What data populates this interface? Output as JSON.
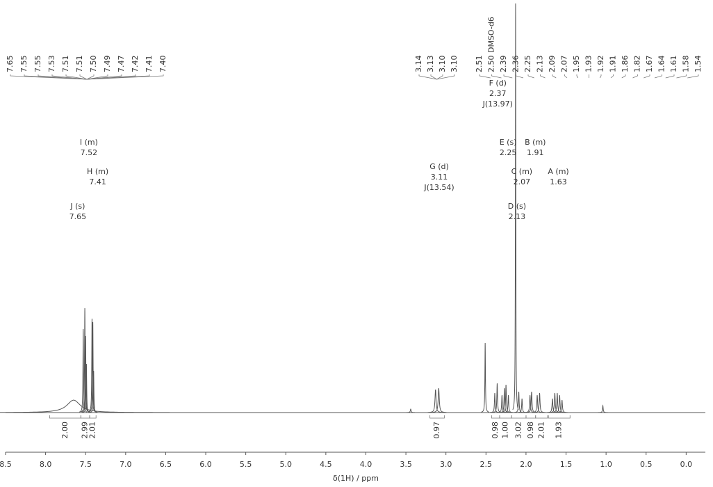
{
  "chart_data": {
    "type": "spectrum",
    "xlabel": "δ(1H) / ppm",
    "xlim": [
      8.5,
      -0.24
    ],
    "ylim": [
      0,
      590
    ],
    "xticks": [
      {
        "value": 8.5,
        "label": "8.5"
      },
      {
        "value": 8.0,
        "label": "8.0"
      },
      {
        "value": 7.5,
        "label": "7.5"
      },
      {
        "value": 7.0,
        "label": "7.0"
      },
      {
        "value": 6.5,
        "label": "6.5"
      },
      {
        "value": 6.0,
        "label": "6.0"
      },
      {
        "value": 5.5,
        "label": "5.5"
      },
      {
        "value": 5.0,
        "label": "5.0"
      },
      {
        "value": 4.5,
        "label": "4.5"
      },
      {
        "value": 4.0,
        "label": "4.0"
      },
      {
        "value": 3.5,
        "label": "3.5"
      },
      {
        "value": 3.0,
        "label": "3.0"
      },
      {
        "value": 2.5,
        "label": "2.5"
      },
      {
        "value": 2.0,
        "label": "2.0"
      },
      {
        "value": 1.5,
        "label": "1.5"
      },
      {
        "value": 1.0,
        "label": "1.0"
      },
      {
        "value": 0.5,
        "label": "0.5"
      },
      {
        "value": 0.0,
        "label": "0.0"
      }
    ],
    "color": "#555555",
    "peaks": [
      {
        "ppm": 7.65,
        "height": 18,
        "width": 0.1
      },
      {
        "ppm": 7.53,
        "height": 120,
        "width": 0.004
      },
      {
        "ppm": 7.51,
        "height": 150,
        "width": 0.004
      },
      {
        "ppm": 7.5,
        "height": 110,
        "width": 0.004
      },
      {
        "ppm": 7.49,
        "height": 70,
        "width": 0.004
      },
      {
        "ppm": 7.42,
        "height": 135,
        "width": 0.004
      },
      {
        "ppm": 7.41,
        "height": 130,
        "width": 0.004
      },
      {
        "ppm": 7.4,
        "height": 60,
        "width": 0.004
      },
      {
        "ppm": 3.44,
        "height": 5,
        "width": 0.006
      },
      {
        "ppm": 3.13,
        "height": 33,
        "width": 0.008
      },
      {
        "ppm": 3.09,
        "height": 35,
        "width": 0.008
      },
      {
        "ppm": 2.51,
        "height": 100,
        "width": 0.004
      },
      {
        "ppm": 2.39,
        "height": 28,
        "width": 0.005
      },
      {
        "ppm": 2.36,
        "height": 42,
        "width": 0.005
      },
      {
        "ppm": 2.3,
        "height": 25,
        "width": 0.005
      },
      {
        "ppm": 2.27,
        "height": 35,
        "width": 0.005
      },
      {
        "ppm": 2.25,
        "height": 40,
        "width": 0.005
      },
      {
        "ppm": 2.22,
        "height": 25,
        "width": 0.005
      },
      {
        "ppm": 2.13,
        "height": 588,
        "width": 0.003
      },
      {
        "ppm": 2.09,
        "height": 30,
        "width": 0.005
      },
      {
        "ppm": 2.05,
        "height": 20,
        "width": 0.005
      },
      {
        "ppm": 1.95,
        "height": 25,
        "width": 0.006
      },
      {
        "ppm": 1.93,
        "height": 30,
        "width": 0.006
      },
      {
        "ppm": 1.86,
        "height": 25,
        "width": 0.006
      },
      {
        "ppm": 1.83,
        "height": 28,
        "width": 0.006
      },
      {
        "ppm": 1.67,
        "height": 20,
        "width": 0.006
      },
      {
        "ppm": 1.64,
        "height": 28,
        "width": 0.006
      },
      {
        "ppm": 1.61,
        "height": 28,
        "width": 0.006
      },
      {
        "ppm": 1.58,
        "height": 25,
        "width": 0.006
      },
      {
        "ppm": 1.55,
        "height": 18,
        "width": 0.006
      },
      {
        "ppm": 1.04,
        "height": 10,
        "width": 0.005
      }
    ],
    "peak_labels": [
      [
        "7.65",
        "7.55",
        "7.55",
        "7.53",
        "7.51",
        "7.51",
        "7.50",
        "7.49",
        "7.47",
        "7.42",
        "7.41",
        "7.40"
      ],
      [
        "3.14",
        "3.13",
        "3.10",
        "3.10"
      ],
      [
        "2.51",
        "2.50 DMSO-d6",
        "2.39",
        "2.36",
        "2.25",
        "2.13",
        "2.09",
        "2.07",
        "1.95",
        "1.93",
        "1.92",
        "1.91",
        "1.86",
        "1.82",
        "1.67",
        "1.64",
        "1.61",
        "1.58",
        "1.54"
      ]
    ],
    "multiplets": [
      {
        "name": "I (m)",
        "shift": 7.52
      },
      {
        "name": "H (m)",
        "shift": 7.41
      },
      {
        "name": "J (s)",
        "shift": 7.65
      },
      {
        "name": "G (d)",
        "shift": 3.11,
        "j": "J(13.54)"
      },
      {
        "name": "F (d)",
        "shift": 2.37,
        "j": "J(13.97)"
      },
      {
        "name": "E (s)",
        "shift": 2.25
      },
      {
        "name": "B (m)",
        "shift": 1.91
      },
      {
        "name": "C (m)",
        "shift": 2.07
      },
      {
        "name": "A (m)",
        "shift": 1.63
      },
      {
        "name": "D (s)",
        "shift": 2.13
      }
    ],
    "integrals": [
      {
        "value": 2.0,
        "label": "2.00",
        "from": 7.95,
        "to": 7.56
      },
      {
        "value": 2.99,
        "from": 7.56,
        "to": 7.45
      },
      {
        "value": 2.01,
        "from": 7.45,
        "to": 7.37
      },
      {
        "value": 0.97,
        "from": 3.2,
        "to": 3.02
      },
      {
        "value": 0.98,
        "from": 2.43,
        "to": 2.33
      },
      {
        "value": 1.0,
        "label": "1.00",
        "from": 2.33,
        "to": 2.18
      },
      {
        "value": 3.02,
        "from": 2.18,
        "to": 2.0
      },
      {
        "value": 0.98,
        "from": 2.0,
        "to": 1.88
      },
      {
        "value": 2.01,
        "from": 1.88,
        "to": 1.73
      },
      {
        "value": 1.93,
        "from": 1.72,
        "to": 1.45
      }
    ]
  }
}
